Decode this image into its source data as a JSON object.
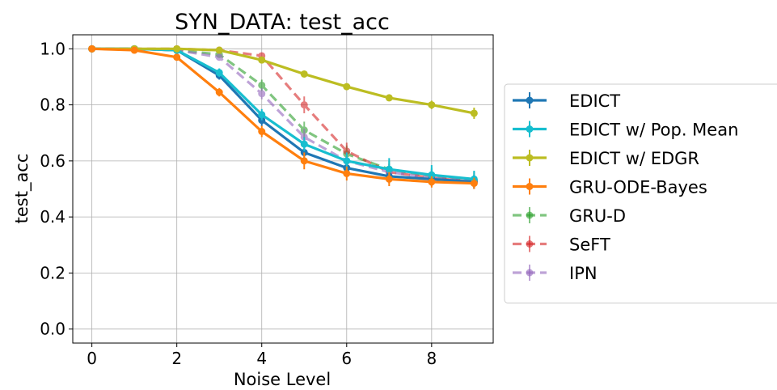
{
  "chart_data": {
    "type": "line",
    "title": "SYN_DATA: test_acc",
    "xlabel": "Noise Level",
    "ylabel": "test_acc",
    "xlim": [
      -0.45,
      9.45
    ],
    "ylim": [
      -0.05,
      1.05
    ],
    "xticks": [
      0,
      2,
      4,
      6,
      8
    ],
    "xtick_labels": [
      "0",
      "2",
      "4",
      "6",
      "8"
    ],
    "yticks": [
      0.0,
      0.2,
      0.4,
      0.6,
      0.8,
      1.0
    ],
    "ytick_labels": [
      "0.0",
      "0.2",
      "0.4",
      "0.6",
      "0.8",
      "1.0"
    ],
    "grid": true,
    "legend_position": "outside-right",
    "x": [
      0,
      1,
      2,
      3,
      4,
      5,
      6,
      7,
      8,
      9
    ],
    "series": [
      {
        "name": "EDICT",
        "color": "#1f77b4",
        "dashed": false,
        "opacity": 1.0,
        "values": [
          1.0,
          1.0,
          0.995,
          0.905,
          0.745,
          0.63,
          0.575,
          0.545,
          0.535,
          0.525
        ],
        "errors": [
          0.002,
          0.003,
          0.005,
          0.015,
          0.02,
          0.03,
          0.025,
          0.025,
          0.025,
          0.025
        ]
      },
      {
        "name": "EDICT w/ Pop. Mean",
        "color": "#17becf",
        "dashed": false,
        "opacity": 1.0,
        "values": [
          1.0,
          1.0,
          0.995,
          0.915,
          0.765,
          0.66,
          0.6,
          0.57,
          0.55,
          0.535
        ],
        "errors": [
          0.002,
          0.003,
          0.005,
          0.015,
          0.02,
          0.025,
          0.03,
          0.04,
          0.035,
          0.03
        ]
      },
      {
        "name": "EDICT w/ EDGR",
        "color": "#bcbd22",
        "dashed": false,
        "opacity": 1.0,
        "values": [
          1.0,
          1.0,
          1.0,
          0.995,
          0.96,
          0.91,
          0.865,
          0.825,
          0.8,
          0.77
        ],
        "errors": [
          0.002,
          0.002,
          0.002,
          0.005,
          0.01,
          0.01,
          0.012,
          0.012,
          0.015,
          0.02
        ]
      },
      {
        "name": "GRU-ODE-Bayes",
        "color": "#ff7f0e",
        "dashed": false,
        "opacity": 1.0,
        "values": [
          1.0,
          0.995,
          0.97,
          0.845,
          0.705,
          0.6,
          0.555,
          0.535,
          0.525,
          0.52
        ],
        "errors": [
          0.002,
          0.003,
          0.008,
          0.015,
          0.02,
          0.03,
          0.025,
          0.025,
          0.02,
          0.02
        ]
      },
      {
        "name": "GRU-D",
        "color": "#2ca02c",
        "dashed": true,
        "opacity": 0.6,
        "values": [
          1.0,
          1.0,
          0.995,
          0.98,
          0.87,
          0.71,
          0.625,
          0.57,
          0.545,
          0.53
        ],
        "errors": [
          0.002,
          0.002,
          0.003,
          0.01,
          0.02,
          0.03,
          0.03,
          0.03,
          0.03,
          0.03
        ]
      },
      {
        "name": "SeFT",
        "color": "#d62728",
        "dashed": true,
        "opacity": 0.6,
        "values": [
          1.0,
          1.0,
          1.0,
          0.995,
          0.975,
          0.8,
          0.635,
          0.56,
          0.54,
          0.525
        ],
        "errors": [
          0.002,
          0.002,
          0.002,
          0.005,
          0.01,
          0.03,
          0.03,
          0.03,
          0.025,
          0.025
        ]
      },
      {
        "name": "IPN",
        "color": "#9467bd",
        "dashed": true,
        "opacity": 0.6,
        "values": [
          1.0,
          1.0,
          0.995,
          0.97,
          0.84,
          0.685,
          0.6,
          0.56,
          0.54,
          0.53
        ],
        "errors": [
          0.002,
          0.002,
          0.003,
          0.01,
          0.02,
          0.03,
          0.03,
          0.03,
          0.03,
          0.03
        ]
      }
    ]
  }
}
